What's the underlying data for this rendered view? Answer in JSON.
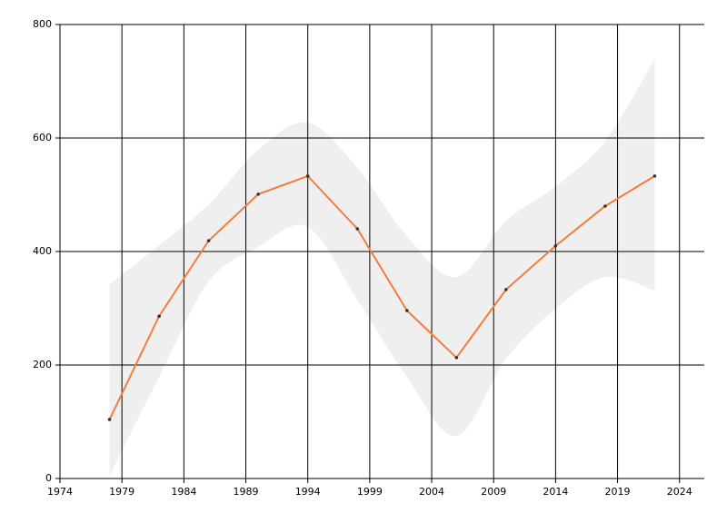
{
  "chart_data": {
    "type": "line",
    "x": [
      1978,
      1982,
      1986,
      1990,
      1994,
      1998,
      2002,
      2006,
      2010,
      2014,
      2018,
      2022
    ],
    "values": [
      104,
      286,
      419,
      501,
      533,
      440,
      296,
      213,
      333,
      410,
      480,
      533
    ],
    "band_upper": [
      342,
      411,
      483,
      579,
      627,
      547,
      427,
      355,
      454,
      515,
      595,
      739
    ],
    "band_lower": [
      5,
      179,
      347,
      408,
      443,
      315,
      179,
      75,
      211,
      299,
      355,
      331
    ],
    "color": "#f47c3c",
    "band_color": "#efefef",
    "marker_color": "#333333",
    "xlim": [
      1974,
      2026
    ],
    "xticks": [
      1974,
      1979,
      1984,
      1989,
      1994,
      1999,
      2004,
      2009,
      2014,
      2019,
      2024
    ],
    "ylim": [
      0,
      800
    ],
    "yticks": [
      0,
      200,
      400,
      600,
      800
    ],
    "grid": true
  }
}
